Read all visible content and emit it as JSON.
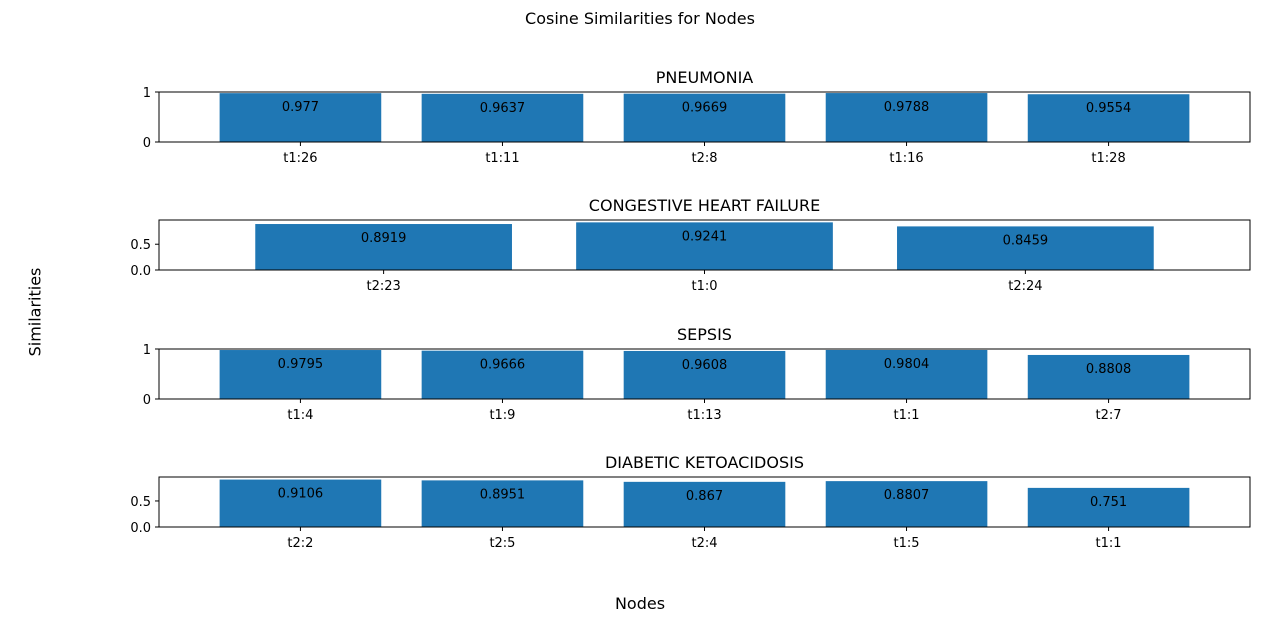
{
  "figure": {
    "title": "Cosine Similarities for Nodes",
    "xlabel": "Nodes",
    "ylabel": "Similarities",
    "bar_color": "#1f77b4"
  },
  "chart_data": [
    {
      "type": "bar",
      "title": "PNEUMONIA",
      "categories": [
        "t1:26",
        "t1:11",
        "t2:8",
        "t1:16",
        "t1:28"
      ],
      "values": [
        0.977,
        0.9637,
        0.9669,
        0.9788,
        0.9554
      ],
      "value_labels": [
        "0.977",
        "0.9637",
        "0.9669",
        "0.9788",
        "0.9554"
      ],
      "ylim": [
        0,
        1.0
      ],
      "yticks": [
        0,
        1
      ],
      "ytick_labels": [
        "0",
        "1"
      ],
      "grid": false
    },
    {
      "type": "bar",
      "title": "CONGESTIVE HEART FAILURE",
      "categories": [
        "t2:23",
        "t1:0",
        "t2:24"
      ],
      "values": [
        0.8919,
        0.9241,
        0.8459
      ],
      "value_labels": [
        "0.8919",
        "0.9241",
        "0.8459"
      ],
      "ylim": [
        0,
        0.97
      ],
      "yticks": [
        0.0,
        0.5
      ],
      "ytick_labels": [
        "0.0",
        "0.5"
      ],
      "grid": false
    },
    {
      "type": "bar",
      "title": "SEPSIS",
      "categories": [
        "t1:4",
        "t1:9",
        "t1:13",
        "t1:1",
        "t2:7"
      ],
      "values": [
        0.9795,
        0.9666,
        0.9608,
        0.9804,
        0.8808
      ],
      "value_labels": [
        "0.9795",
        "0.9666",
        "0.9608",
        "0.9804",
        "0.8808"
      ],
      "ylim": [
        0,
        1.0
      ],
      "yticks": [
        0,
        1
      ],
      "ytick_labels": [
        "0",
        "1"
      ],
      "grid": false
    },
    {
      "type": "bar",
      "title": "DIABETIC KETOACIDOSIS",
      "categories": [
        "t2:2",
        "t2:5",
        "t2:4",
        "t1:5",
        "t1:1"
      ],
      "values": [
        0.9106,
        0.8951,
        0.867,
        0.8807,
        0.751
      ],
      "value_labels": [
        "0.9106",
        "0.8951",
        "0.867",
        "0.8807",
        "0.751"
      ],
      "ylim": [
        0,
        0.96
      ],
      "yticks": [
        0.0,
        0.5
      ],
      "ytick_labels": [
        "0.0",
        "0.5"
      ],
      "grid": false
    }
  ]
}
